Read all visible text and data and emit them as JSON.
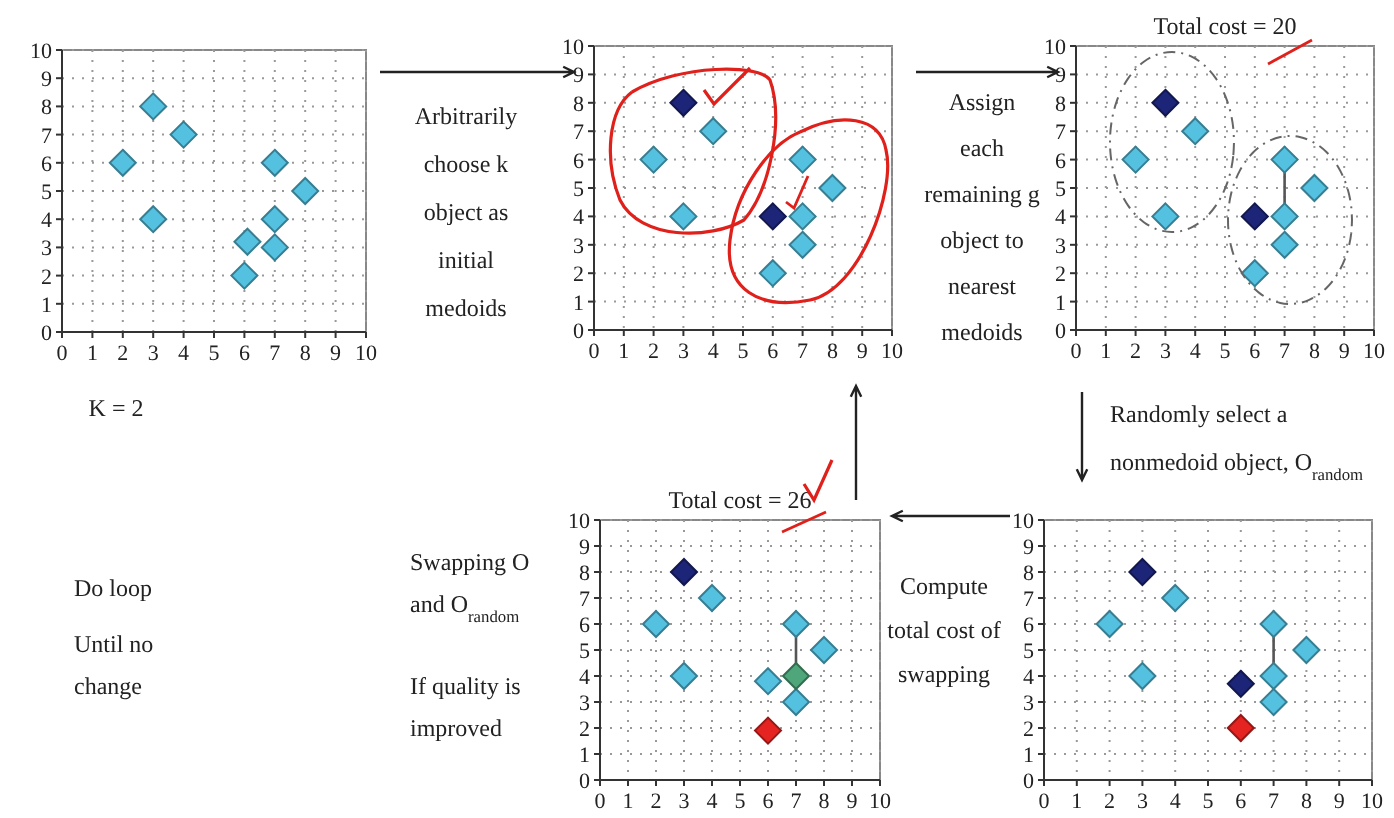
{
  "chart_data": [
    {
      "type": "scatter",
      "xlim": [
        0,
        10
      ],
      "ylim": [
        0,
        10
      ],
      "xticks": [
        0,
        1,
        2,
        3,
        4,
        5,
        6,
        7,
        8,
        9,
        10
      ],
      "yticks": [
        0,
        1,
        2,
        3,
        4,
        5,
        6,
        7,
        8,
        9,
        10
      ],
      "grid": true,
      "marker": "diamond",
      "annotations": [
        "K = 2"
      ],
      "series": [
        {
          "color": "#55c1e0",
          "x": [
            3,
            4,
            2,
            3,
            7,
            8,
            7,
            6.1,
            7,
            6
          ],
          "values": [
            8,
            7,
            6,
            4,
            6,
            5,
            4,
            3.2,
            3,
            2
          ]
        }
      ]
    },
    {
      "type": "scatter",
      "xlim": [
        0,
        10
      ],
      "ylim": [
        0,
        10
      ],
      "xticks": [
        0,
        1,
        2,
        3,
        4,
        5,
        6,
        7,
        8,
        9,
        10
      ],
      "yticks": [
        0,
        1,
        2,
        3,
        4,
        5,
        6,
        7,
        8,
        9,
        10
      ],
      "grid": true,
      "marker": "diamond",
      "annotations": [
        "Arbitrarily\nchoose k\nobject as\ninitial\nmedoids"
      ],
      "series": [
        {
          "color": "#55c1e0",
          "x": [
            4,
            2,
            3,
            7,
            8,
            7,
            7,
            6
          ],
          "values": [
            7,
            6,
            4,
            6,
            5,
            4,
            3,
            2
          ]
        },
        {
          "color": "#1c2577",
          "x": [
            3,
            6
          ],
          "values": [
            8,
            4
          ]
        }
      ]
    },
    {
      "type": "scatter",
      "title": "Total cost = 20",
      "xlim": [
        0,
        10
      ],
      "ylim": [
        0,
        10
      ],
      "xticks": [
        0,
        1,
        2,
        3,
        4,
        5,
        6,
        7,
        8,
        9,
        10
      ],
      "yticks": [
        0,
        1,
        2,
        3,
        4,
        5,
        6,
        7,
        8,
        9,
        10
      ],
      "grid": true,
      "marker": "diamond",
      "annotations": [
        "Assign\neach\nremaining g\nobject to\nnearest\nmedoids"
      ],
      "series": [
        {
          "type": "line",
          "marker": "none",
          "color": "#555555",
          "x": [
            7,
            7
          ],
          "values": [
            4,
            6
          ]
        },
        {
          "color": "#55c1e0",
          "x": [
            4,
            2,
            3,
            7,
            8,
            7,
            7,
            6
          ],
          "values": [
            7,
            6,
            4,
            6,
            5,
            4,
            3,
            2
          ]
        },
        {
          "color": "#1c2577",
          "x": [
            3,
            6
          ],
          "values": [
            8,
            4
          ]
        }
      ]
    },
    {
      "type": "scatter",
      "title": "Total cost = 26",
      "xlim": [
        0,
        10
      ],
      "ylim": [
        0,
        10
      ],
      "xticks": [
        0,
        1,
        2,
        3,
        4,
        5,
        6,
        7,
        8,
        9,
        10
      ],
      "yticks": [
        0,
        1,
        2,
        3,
        4,
        5,
        6,
        7,
        8,
        9,
        10
      ],
      "grid": true,
      "marker": "diamond",
      "annotations": [
        "Swapping O\nand O$_{random}$",
        "If quality is\nimproved",
        "Do loop",
        "Until no\nchange"
      ],
      "series": [
        {
          "type": "line",
          "marker": "none",
          "color": "#555555",
          "x": [
            7,
            7
          ],
          "values": [
            4,
            6
          ]
        },
        {
          "color": "#55c1e0",
          "x": [
            4,
            2,
            3,
            7,
            8,
            6,
            7
          ],
          "values": [
            7,
            6,
            4,
            6,
            5,
            3.8,
            3
          ]
        },
        {
          "color": "#1c2577",
          "x": [
            3
          ],
          "values": [
            8
          ]
        },
        {
          "color": "#4ea67a",
          "x": [
            7
          ],
          "values": [
            4
          ]
        },
        {
          "color": "#e52421",
          "x": [
            6
          ],
          "values": [
            1.9
          ]
        }
      ]
    },
    {
      "type": "scatter",
      "xlim": [
        0,
        10
      ],
      "ylim": [
        0,
        10
      ],
      "xticks": [
        0,
        1,
        2,
        3,
        4,
        5,
        6,
        7,
        8,
        9,
        10
      ],
      "yticks": [
        0,
        1,
        2,
        3,
        4,
        5,
        6,
        7,
        8,
        9,
        10
      ],
      "grid": true,
      "marker": "diamond",
      "annotations": [
        "Randomly select a\nnonmedoid object, O$_{random}$",
        "Compute\ntotal cost of\nswapping"
      ],
      "series": [
        {
          "type": "line",
          "marker": "none",
          "color": "#555555",
          "x": [
            7,
            7
          ],
          "values": [
            4,
            6
          ]
        },
        {
          "color": "#55c1e0",
          "x": [
            4,
            2,
            3,
            7,
            8,
            7,
            7
          ],
          "values": [
            7,
            6,
            4,
            6,
            5,
            4,
            3
          ]
        },
        {
          "color": "#1c2577",
          "x": [
            3,
            6
          ],
          "values": [
            8,
            3.7
          ]
        },
        {
          "color": "#e52421",
          "x": [
            6
          ],
          "values": [
            2
          ]
        }
      ]
    }
  ]
}
